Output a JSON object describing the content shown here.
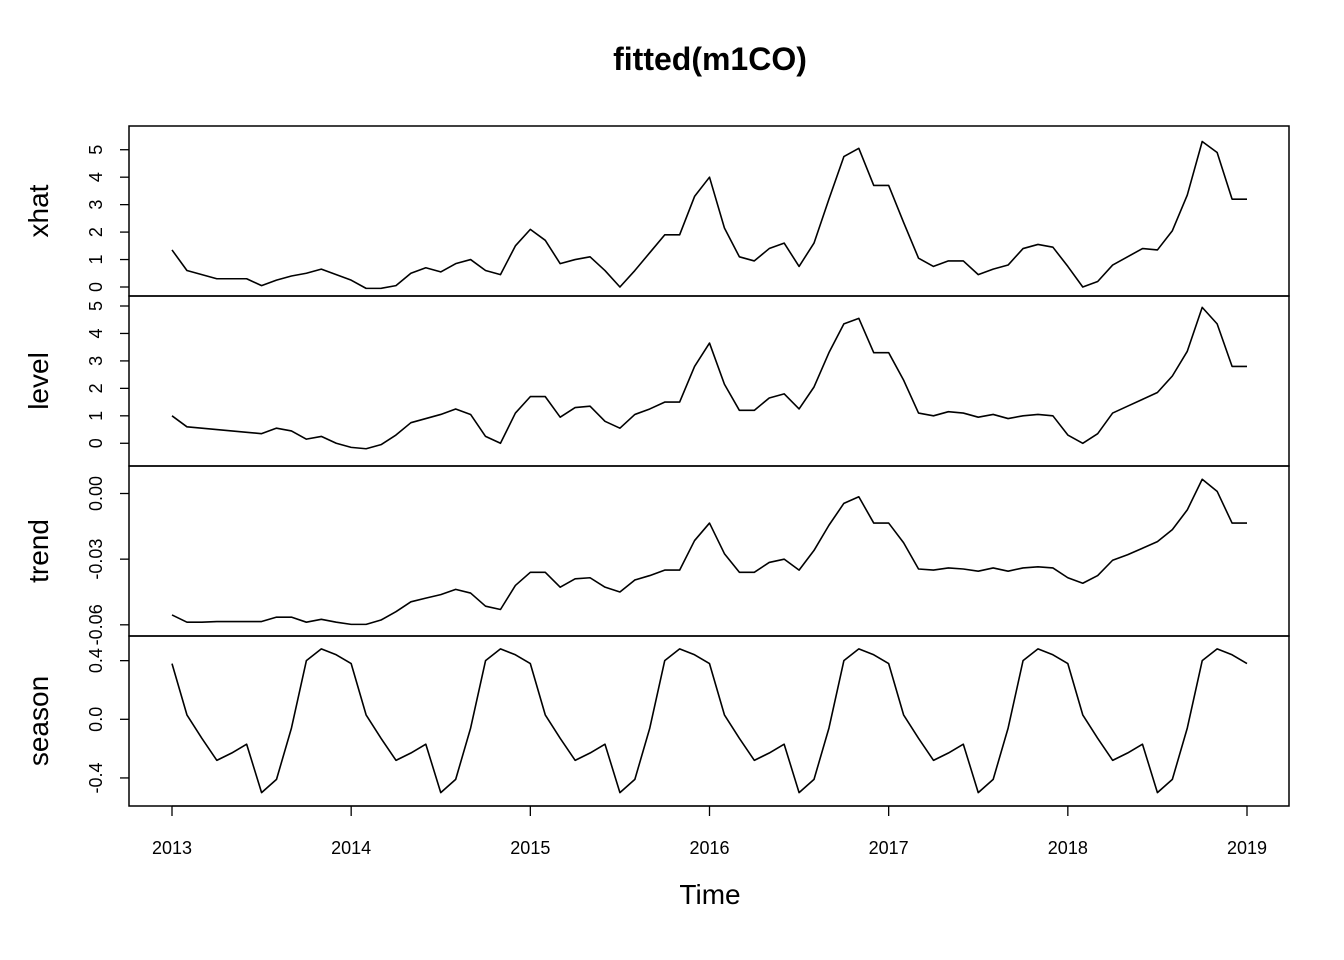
{
  "chart_data": {
    "type": "line",
    "title": "fitted(m1CO)",
    "xlabel": "Time",
    "x_start": 2013,
    "x_step": 0.08333333,
    "xlim": [
      2013,
      2019
    ],
    "x_ticks": [
      "2013",
      "2014",
      "2015",
      "2016",
      "2017",
      "2018",
      "2019"
    ],
    "grid": false,
    "panels": [
      {
        "name": "xhat",
        "ylim": [
          0,
          5.5
        ],
        "y_ticks": [
          "0",
          "1",
          "2",
          "3",
          "4",
          "5"
        ],
        "values": [
          1.35,
          0.6,
          0.45,
          0.3,
          0.3,
          0.3,
          0.05,
          0.25,
          0.4,
          0.5,
          0.65,
          0.45,
          0.25,
          -0.05,
          -0.05,
          0.05,
          0.5,
          0.7,
          0.55,
          0.85,
          1.0,
          0.6,
          0.45,
          1.5,
          2.1,
          1.7,
          0.85,
          1.0,
          1.1,
          0.6,
          0.0,
          0.6,
          1.25,
          1.9,
          1.9,
          3.3,
          4.0,
          2.15,
          1.1,
          0.95,
          1.4,
          1.6,
          0.75,
          1.6,
          3.2,
          4.75,
          5.05,
          3.7,
          3.7,
          2.35,
          1.05,
          0.75,
          0.95,
          0.95,
          0.45,
          0.65,
          0.8,
          1.4,
          1.55,
          1.45,
          0.75,
          0.0,
          0.2,
          0.8,
          1.1,
          1.4,
          1.35,
          2.05,
          3.35,
          5.3,
          4.9,
          3.2,
          3.2
        ]
      },
      {
        "name": "level",
        "ylim": [
          -0.5,
          5.0
        ],
        "y_ticks": [
          "0",
          "1",
          "2",
          "3",
          "4",
          "5"
        ],
        "values": [
          1.0,
          0.6,
          0.55,
          0.5,
          0.45,
          0.4,
          0.35,
          0.55,
          0.45,
          0.15,
          0.25,
          0.0,
          -0.15,
          -0.2,
          -0.05,
          0.3,
          0.75,
          0.9,
          1.05,
          1.25,
          1.05,
          0.25,
          0.0,
          1.1,
          1.7,
          1.7,
          0.95,
          1.3,
          1.35,
          0.8,
          0.55,
          1.05,
          1.25,
          1.5,
          1.5,
          2.8,
          3.65,
          2.15,
          1.2,
          1.2,
          1.65,
          1.8,
          1.25,
          2.05,
          3.3,
          4.35,
          4.55,
          3.3,
          3.3,
          2.3,
          1.1,
          1.0,
          1.15,
          1.1,
          0.95,
          1.05,
          0.9,
          1.0,
          1.05,
          1.0,
          0.3,
          0.0,
          0.35,
          1.1,
          1.35,
          1.6,
          1.85,
          2.45,
          3.35,
          4.95,
          4.35,
          2.8,
          2.8
        ]
      },
      {
        "name": "trend",
        "ylim": [
          -0.061,
          0.008
        ],
        "y_ticks": [
          "-0.06",
          "-0.03",
          "0.00"
        ],
        "values": [
          -0.0555,
          -0.0588,
          -0.0588,
          -0.0585,
          -0.0585,
          -0.0585,
          -0.0585,
          -0.0565,
          -0.0565,
          -0.0588,
          -0.0575,
          -0.0588,
          -0.0598,
          -0.0598,
          -0.0578,
          -0.054,
          -0.0495,
          -0.0478,
          -0.0462,
          -0.0438,
          -0.0455,
          -0.0515,
          -0.053,
          -0.042,
          -0.036,
          -0.036,
          -0.0428,
          -0.039,
          -0.0385,
          -0.0428,
          -0.045,
          -0.0395,
          -0.0375,
          -0.035,
          -0.035,
          -0.0215,
          -0.0135,
          -0.0275,
          -0.036,
          -0.036,
          -0.0315,
          -0.03,
          -0.035,
          -0.026,
          -0.0145,
          -0.0045,
          -0.0015,
          -0.0135,
          -0.0135,
          -0.0225,
          -0.0345,
          -0.035,
          -0.034,
          -0.0345,
          -0.0355,
          -0.034,
          -0.0355,
          -0.034,
          -0.0335,
          -0.034,
          -0.0385,
          -0.041,
          -0.0375,
          -0.0305,
          -0.028,
          -0.025,
          -0.022,
          -0.0165,
          -0.0075,
          0.0065,
          0.001,
          -0.0135,
          -0.0135
        ]
      },
      {
        "name": "season",
        "ylim": [
          -0.53,
          0.5
        ],
        "y_ticks": [
          "-0.4",
          "0.0",
          "0.4"
        ],
        "values": [
          0.38,
          0.03,
          -0.13,
          -0.28,
          -0.23,
          -0.17,
          -0.5,
          -0.41,
          -0.06,
          0.4,
          0.48,
          0.44,
          0.38,
          0.03,
          -0.13,
          -0.28,
          -0.23,
          -0.17,
          -0.5,
          -0.41,
          -0.06,
          0.4,
          0.48,
          0.44,
          0.38,
          0.03,
          -0.13,
          -0.28,
          -0.23,
          -0.17,
          -0.5,
          -0.41,
          -0.06,
          0.4,
          0.48,
          0.44,
          0.38,
          0.03,
          -0.13,
          -0.28,
          -0.23,
          -0.17,
          -0.5,
          -0.41,
          -0.06,
          0.4,
          0.48,
          0.44,
          0.38,
          0.03,
          -0.13,
          -0.28,
          -0.23,
          -0.17,
          -0.5,
          -0.41,
          -0.06,
          0.4,
          0.48,
          0.44,
          0.38,
          0.03,
          -0.13,
          -0.28,
          -0.23,
          -0.17,
          -0.5,
          -0.41,
          -0.06,
          0.4,
          0.48,
          0.44,
          0.38
        ]
      }
    ]
  }
}
